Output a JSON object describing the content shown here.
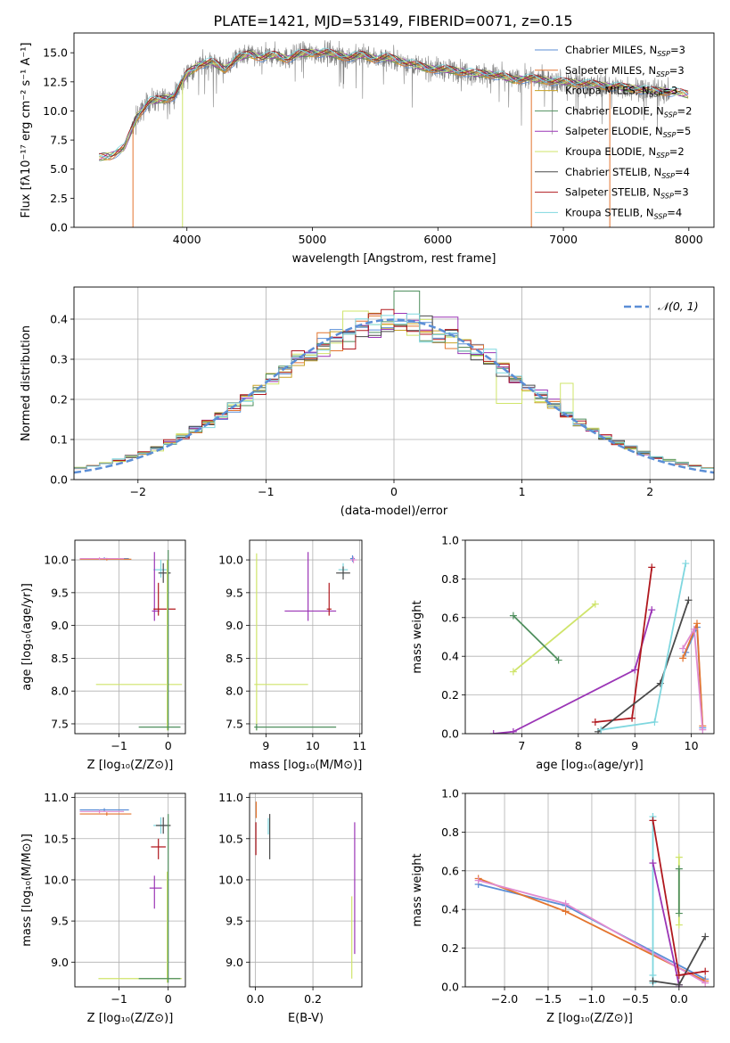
{
  "figure": {
    "title": "PLATE=1421, MJD=53149, FIBERID=0071, z=0.15"
  },
  "colors": {
    "chabrier_miles": "#5b8ed6",
    "salpeter_miles": "#e3742e",
    "kroupa_miles": "#c9a227",
    "chabrier_elodie": "#4f8f5e",
    "salpeter_elodie": "#9b35b6",
    "kroupa_elodie": "#cfe46a",
    "chabrier_stelib": "#4a4a4a",
    "salpeter_stelib": "#b0181e",
    "kroupa_stelib": "#7fd7df",
    "extra_pink": "#e08bd0",
    "observed": "#808080",
    "gaussian": "#5b8ed6",
    "grid": "#b0b0b0"
  },
  "chart_data": [
    {
      "id": "spectrum",
      "type": "line",
      "title": "PLATE=1421, MJD=53149, FIBERID=0071, z=0.15",
      "xlabel": "wavelength [Angstrom, rest frame]",
      "ylabel": "Flux [fλ10⁻¹⁷ erg cm⁻² s⁻¹ A⁻¹]",
      "xlim": [
        3100,
        8200
      ],
      "ylim": [
        0,
        16.7
      ],
      "xticks": [
        4000,
        5000,
        6000,
        7000,
        8000
      ],
      "yticks": [
        0.0,
        2.5,
        5.0,
        7.5,
        10.0,
        12.5,
        15.0
      ],
      "grid": false,
      "legend": "top-right",
      "continuum": {
        "x": [
          3300,
          3400,
          3500,
          3600,
          3700,
          3800,
          3900,
          4000,
          4100,
          4200,
          4300,
          4400,
          4500,
          4600,
          4700,
          4800,
          4900,
          5000,
          5100,
          5200,
          5300,
          5400,
          5500,
          5600,
          5700,
          5800,
          5900,
          6000,
          6100,
          6200,
          6300,
          6400,
          6500,
          6600,
          6700,
          6800,
          6900,
          7000,
          7100,
          7200,
          7300,
          7400,
          7500,
          7600,
          7700,
          7800,
          7900,
          8000
        ],
        "y": [
          6.0,
          6.2,
          6.8,
          9.5,
          10.8,
          11.0,
          11.3,
          13.2,
          14.0,
          14.2,
          13.6,
          14.5,
          14.9,
          14.6,
          14.8,
          14.5,
          14.9,
          15.0,
          15.0,
          14.8,
          14.6,
          14.8,
          14.5,
          14.6,
          14.3,
          14.0,
          13.7,
          13.6,
          13.5,
          13.4,
          13.2,
          13.2,
          13.0,
          12.7,
          12.8,
          12.7,
          12.6,
          12.5,
          12.4,
          12.3,
          12.2,
          12.1,
          12.0,
          11.9,
          11.7,
          11.7,
          11.6,
          11.4
        ]
      },
      "observed_range": [
        3550,
        7850
      ],
      "dropouts": [
        {
          "series": "Salpeter MILES",
          "x": 3570
        },
        {
          "series": "Kroupa ELODIE",
          "x": 3965
        },
        {
          "series": "Salpeter MILES",
          "x": 6745
        },
        {
          "series": "Salpeter MILES",
          "x": 7370
        }
      ],
      "series": [
        {
          "name": "Chabrier MILES, N$_{SSP}$=3",
          "label": "Chabrier MILES, N",
          "sub": "SSP",
          "val": "=3",
          "color": "chabrier_miles"
        },
        {
          "name": "Salpeter MILES, N$_{SSP}$=3",
          "label": "Salpeter MILES, N",
          "sub": "SSP",
          "val": "=3",
          "color": "salpeter_miles"
        },
        {
          "name": "Kroupa MILES, N$_{SSP}$=3",
          "label": "Kroupa MILES, N",
          "sub": "SSP",
          "val": "=3",
          "color": "kroupa_miles"
        },
        {
          "name": "Chabrier ELODIE, N$_{SSP}$=2",
          "label": "Chabrier ELODIE, N",
          "sub": "SSP",
          "val": "=2",
          "color": "chabrier_elodie"
        },
        {
          "name": "Salpeter ELODIE, N$_{SSP}$=5",
          "label": "Salpeter ELODIE, N",
          "sub": "SSP",
          "val": "=5",
          "color": "salpeter_elodie"
        },
        {
          "name": "Kroupa ELODIE, N$_{SSP}$=2",
          "label": "Kroupa ELODIE, N",
          "sub": "SSP",
          "val": "=2",
          "color": "kroupa_elodie"
        },
        {
          "name": "Chabrier STELIB, N$_{SSP}$=4",
          "label": "Chabrier STELIB, N",
          "sub": "SSP",
          "val": "=4",
          "color": "chabrier_stelib"
        },
        {
          "name": "Salpeter STELIB, N$_{SSP}$=3",
          "label": "Salpeter STELIB, N",
          "sub": "SSP",
          "val": "=3",
          "color": "salpeter_stelib"
        },
        {
          "name": "Kroupa STELIB, N$_{SSP}$=4",
          "label": "Kroupa STELIB, N",
          "sub": "SSP",
          "val": "=4",
          "color": "kroupa_stelib"
        }
      ]
    },
    {
      "id": "residuals",
      "type": "line",
      "xlabel": "(data-model)/error",
      "ylabel": "Normed distribution",
      "xlim": [
        -2.5,
        2.5
      ],
      "ylim": [
        0,
        0.48
      ],
      "xticks": [
        -2,
        -1,
        0,
        1,
        2
      ],
      "yticks": [
        0.0,
        0.1,
        0.2,
        0.3,
        0.4
      ],
      "grid": true,
      "legend": "top-right",
      "gaussian_label": "𝒩(0, 1)",
      "bin_width": 0.1,
      "hist_series": [
        "chabrier_miles",
        "salpeter_miles",
        "kroupa_miles",
        "chabrier_elodie",
        "salpeter_elodie",
        "kroupa_elodie",
        "chabrier_stelib",
        "salpeter_stelib",
        "kroupa_stelib"
      ],
      "highlights": [
        {
          "series": "chabrier_elodie",
          "x": 0.1,
          "y": 0.47
        },
        {
          "series": "kroupa_elodie",
          "x": -0.3,
          "y": 0.42
        },
        {
          "series": "salpeter_elodie",
          "x": 0.4,
          "y": 0.405
        },
        {
          "series": "kroupa_elodie",
          "x": 0.9,
          "y": 0.19
        },
        {
          "series": "kroupa_elodie",
          "x": 1.35,
          "y": 0.24
        }
      ]
    },
    {
      "id": "age_vs_Z",
      "type": "scatter",
      "xlabel": "Z [log₁₀(Z/Z⊙)]",
      "ylabel": "age  [log₁₀(age/yr)]",
      "xlim": [
        -1.9,
        0.35
      ],
      "ylim": [
        7.35,
        10.3
      ],
      "xticks": [
        -1,
        0
      ],
      "yticks": [
        7.5,
        8.0,
        8.5,
        9.0,
        9.5,
        10.0
      ],
      "grid": true,
      "points": [
        {
          "c": "chabrier_miles",
          "x": -1.3,
          "y": 10.02,
          "ex": [
            0.5,
            0.5
          ],
          "ey": [
            0.02,
            0.02
          ]
        },
        {
          "c": "salpeter_miles",
          "x": -1.25,
          "y": 10.01,
          "ex": [
            0.55,
            0.5
          ],
          "ey": [
            0.02,
            0.02
          ]
        },
        {
          "c": "extra_pink",
          "x": -1.4,
          "y": 10.02,
          "ex": [
            0.4,
            0.5
          ],
          "ey": [
            0.02,
            0.02
          ]
        },
        {
          "c": "kroupa_stelib",
          "x": -0.15,
          "y": 9.85,
          "ex": [
            0.15,
            0.15
          ],
          "ey": [
            0.12,
            0.15
          ]
        },
        {
          "c": "chabrier_stelib",
          "x": -0.1,
          "y": 9.8,
          "ex": [
            0.1,
            0.15
          ],
          "ey": [
            0.15,
            0.15
          ]
        },
        {
          "c": "salpeter_elodie",
          "x": -0.28,
          "y": 9.22,
          "ex": [
            0.05,
            0.1
          ],
          "ey": [
            0.15,
            0.9
          ]
        },
        {
          "c": "salpeter_stelib",
          "x": -0.2,
          "y": 9.25,
          "ex": [
            0.1,
            0.35
          ],
          "ey": [
            0.1,
            0.4
          ]
        },
        {
          "c": "kroupa_elodie",
          "x": -0.02,
          "y": 8.1,
          "ex": [
            1.45,
            0.3
          ],
          "ey": [
            0.7,
            1.9
          ]
        },
        {
          "c": "chabrier_elodie",
          "x": 0.0,
          "y": 7.45,
          "ex": [
            0.6,
            0.25
          ],
          "ey": [
            0.05,
            2.7
          ]
        }
      ]
    },
    {
      "id": "age_vs_mass",
      "type": "scatter",
      "xlabel": "mass [log₁₀(M/M⊙)]",
      "ylabel": "",
      "xlim": [
        8.65,
        11.05
      ],
      "ylim": [
        7.35,
        10.3
      ],
      "xticks": [
        9,
        10,
        11
      ],
      "yticks": [
        7.5,
        8.0,
        8.5,
        9.0,
        9.5,
        10.0
      ],
      "grid": true,
      "points": [
        {
          "c": "chabrier_miles",
          "x": 10.85,
          "y": 10.02,
          "ex": [
            0.05,
            0.05
          ],
          "ey": [
            0.05,
            0.05
          ]
        },
        {
          "c": "extra_pink",
          "x": 10.87,
          "y": 10.0,
          "ex": [
            0.07,
            0.07
          ],
          "ey": [
            0.05,
            0.05
          ]
        },
        {
          "c": "kroupa_stelib",
          "x": 10.65,
          "y": 9.85,
          "ex": [
            0.1,
            0.1
          ],
          "ey": [
            0.1,
            0.1
          ]
        },
        {
          "c": "chabrier_stelib",
          "x": 10.65,
          "y": 9.8,
          "ex": [
            0.15,
            0.15
          ],
          "ey": [
            0.1,
            0.1
          ]
        },
        {
          "c": "salpeter_elodie",
          "x": 9.9,
          "y": 9.22,
          "ex": [
            0.5,
            0.6
          ],
          "ey": [
            0.15,
            0.9
          ]
        },
        {
          "c": "salpeter_stelib",
          "x": 10.35,
          "y": 9.25,
          "ex": [
            0.05,
            0.05
          ],
          "ey": [
            0.1,
            0.4
          ]
        },
        {
          "c": "kroupa_elodie",
          "x": 8.8,
          "y": 8.1,
          "ex": [
            0.05,
            1.1
          ],
          "ey": [
            0.7,
            2.0
          ]
        },
        {
          "c": "chabrier_elodie",
          "x": 8.8,
          "y": 7.45,
          "ex": [
            0.05,
            1.7
          ],
          "ey": [
            0.05,
            0.05
          ]
        }
      ]
    },
    {
      "id": "weight_vs_age",
      "type": "line",
      "xlabel": "age  [log₁₀(age/yr)]",
      "ylabel": "mass weight",
      "xlim": [
        6.0,
        10.4
      ],
      "ylim": [
        0,
        1.0
      ],
      "xticks": [
        7,
        8,
        9,
        10
      ],
      "yticks": [
        0.0,
        0.2,
        0.4,
        0.6,
        0.8,
        1.0
      ],
      "grid": true,
      "series": [
        {
          "c": "kroupa_elodie",
          "x": [
            6.85,
            8.3
          ],
          "y": [
            0.32,
            0.67
          ]
        },
        {
          "c": "chabrier_elodie",
          "x": [
            6.85,
            7.65
          ],
          "y": [
            0.61,
            0.38
          ]
        },
        {
          "c": "salpeter_elodie",
          "x": [
            6.5,
            6.85,
            9.0,
            9.3
          ],
          "y": [
            0.0,
            0.01,
            0.33,
            0.64
          ]
        },
        {
          "c": "salpeter_stelib",
          "x": [
            8.3,
            8.95,
            9.3
          ],
          "y": [
            0.06,
            0.08,
            0.86
          ]
        },
        {
          "c": "chabrier_stelib",
          "x": [
            8.35,
            9.45,
            9.95
          ],
          "y": [
            0.01,
            0.26,
            0.69
          ]
        },
        {
          "c": "kroupa_stelib",
          "x": [
            8.4,
            9.35,
            9.9
          ],
          "y": [
            0.02,
            0.06,
            0.88
          ]
        },
        {
          "c": "chabrier_miles",
          "x": [
            9.9,
            10.1,
            10.2
          ],
          "y": [
            0.42,
            0.55,
            0.03
          ]
        },
        {
          "c": "salpeter_miles",
          "x": [
            9.85,
            10.1,
            10.2
          ],
          "y": [
            0.39,
            0.57,
            0.04
          ]
        },
        {
          "c": "extra_pink",
          "x": [
            9.85,
            10.05,
            10.2
          ],
          "y": [
            0.44,
            0.54,
            0.02
          ]
        }
      ]
    },
    {
      "id": "mass_vs_Z",
      "type": "scatter",
      "xlabel": "Z [log₁₀(Z/Z⊙)]",
      "ylabel": "mass [log₁₀(M/M⊙)]",
      "xlim": [
        -1.9,
        0.35
      ],
      "ylim": [
        8.7,
        11.05
      ],
      "xticks": [
        -1,
        0
      ],
      "yticks": [
        9.0,
        9.5,
        10.0,
        10.5,
        11.0
      ],
      "grid": true,
      "points": [
        {
          "c": "chabrier_miles",
          "x": -1.3,
          "y": 10.85,
          "ex": [
            0.5,
            0.5
          ],
          "ey": [
            0.02,
            0.02
          ]
        },
        {
          "c": "extra_pink",
          "x": -1.4,
          "y": 10.83,
          "ex": [
            0.4,
            0.5
          ],
          "ey": [
            0.02,
            0.02
          ]
        },
        {
          "c": "salpeter_miles",
          "x": -1.25,
          "y": 10.8,
          "ex": [
            0.55,
            0.5
          ],
          "ey": [
            0.02,
            0.02
          ]
        },
        {
          "c": "kroupa_stelib",
          "x": -0.15,
          "y": 10.66,
          "ex": [
            0.15,
            0.15
          ],
          "ey": [
            0.1,
            0.1
          ]
        },
        {
          "c": "chabrier_stelib",
          "x": -0.1,
          "y": 10.66,
          "ex": [
            0.15,
            0.15
          ],
          "ey": [
            0.1,
            0.1
          ]
        },
        {
          "c": "salpeter_stelib",
          "x": -0.2,
          "y": 10.4,
          "ex": [
            0.15,
            0.15
          ],
          "ey": [
            0.15,
            0.1
          ]
        },
        {
          "c": "salpeter_elodie",
          "x": -0.28,
          "y": 9.9,
          "ex": [
            0.1,
            0.15
          ],
          "ey": [
            0.25,
            0.15
          ]
        },
        {
          "c": "kroupa_elodie",
          "x": -0.02,
          "y": 8.8,
          "ex": [
            1.4,
            0.3
          ],
          "ey": [
            0.05,
            1.3
          ]
        },
        {
          "c": "chabrier_elodie",
          "x": 0.0,
          "y": 8.8,
          "ex": [
            0.6,
            0.25
          ],
          "ey": [
            0.05,
            2.0
          ]
        }
      ]
    },
    {
      "id": "mass_vs_ebv",
      "type": "scatter",
      "xlabel": "E(B-V)",
      "ylabel": "",
      "xlim": [
        -0.02,
        0.37
      ],
      "ylim": [
        8.7,
        11.05
      ],
      "xticks": [
        0.0,
        0.2
      ],
      "yticks": [
        9.0,
        9.5,
        10.0,
        10.5,
        11.0
      ],
      "grid": true,
      "points": [
        {
          "c": "salpeter_stelib",
          "x": 0.002,
          "y": 10.5,
          "ex": [
            0,
            0
          ],
          "ey": [
            0.2,
            0.2
          ]
        },
        {
          "c": "salpeter_miles",
          "x": 0.003,
          "y": 10.85,
          "ex": [
            0,
            0
          ],
          "ey": [
            0.1,
            0.1
          ]
        },
        {
          "c": "chabrier_stelib",
          "x": 0.05,
          "y": 10.5,
          "ex": [
            0,
            0
          ],
          "ey": [
            0.25,
            0.3
          ]
        },
        {
          "c": "kroupa_stelib",
          "x": 0.045,
          "y": 10.65,
          "ex": [
            0,
            0
          ],
          "ey": [
            0.1,
            0.1
          ]
        },
        {
          "c": "salpeter_elodie",
          "x": 0.345,
          "y": 9.9,
          "ex": [
            0,
            0
          ],
          "ey": [
            0.8,
            0.8
          ]
        },
        {
          "c": "kroupa_elodie",
          "x": 0.335,
          "y": 9.3,
          "ex": [
            0,
            0
          ],
          "ey": [
            0.5,
            0.5
          ]
        }
      ]
    },
    {
      "id": "weight_vs_Z",
      "type": "line",
      "xlabel": "Z [log₁₀(Z/Z⊙)]",
      "ylabel": "mass weight",
      "xlim": [
        -2.45,
        0.4
      ],
      "ylim": [
        0,
        1.0
      ],
      "xticks": [
        -2.0,
        -1.5,
        -1.0,
        -0.5,
        0.0
      ],
      "yticks": [
        0.0,
        0.2,
        0.4,
        0.6,
        0.8,
        1.0
      ],
      "grid": true,
      "series": [
        {
          "c": "chabrier_miles",
          "x": [
            -2.3,
            -1.3,
            0.3
          ],
          "y": [
            0.53,
            0.42,
            0.04
          ]
        },
        {
          "c": "salpeter_miles",
          "x": [
            -2.3,
            -1.3,
            0.3
          ],
          "y": [
            0.56,
            0.39,
            0.03
          ]
        },
        {
          "c": "extra_pink",
          "x": [
            -2.3,
            -1.3,
            0.3
          ],
          "y": [
            0.55,
            0.43,
            0.02
          ]
        },
        {
          "c": "kroupa_stelib",
          "x": [
            -0.3,
            -0.3,
            -0.3,
            -0.3
          ],
          "y": [
            0.88,
            0.06,
            0.02,
            0.88
          ]
        },
        {
          "c": "salpeter_elodie",
          "x": [
            -0.3,
            0.0,
            0.0
          ],
          "y": [
            0.64,
            0.01,
            0.0
          ]
        },
        {
          "c": "chabrier_stelib",
          "x": [
            -0.3,
            0.0,
            0.3
          ],
          "y": [
            0.03,
            0.01,
            0.26
          ]
        },
        {
          "c": "salpeter_stelib",
          "x": [
            -0.3,
            0.0,
            0.3
          ],
          "y": [
            0.86,
            0.06,
            0.08
          ]
        },
        {
          "c": "kroupa_elodie",
          "x": [
            0.0,
            0.0
          ],
          "y": [
            0.32,
            0.67
          ]
        },
        {
          "c": "chabrier_elodie",
          "x": [
            0.0,
            0.0
          ],
          "y": [
            0.38,
            0.61
          ]
        }
      ]
    }
  ]
}
